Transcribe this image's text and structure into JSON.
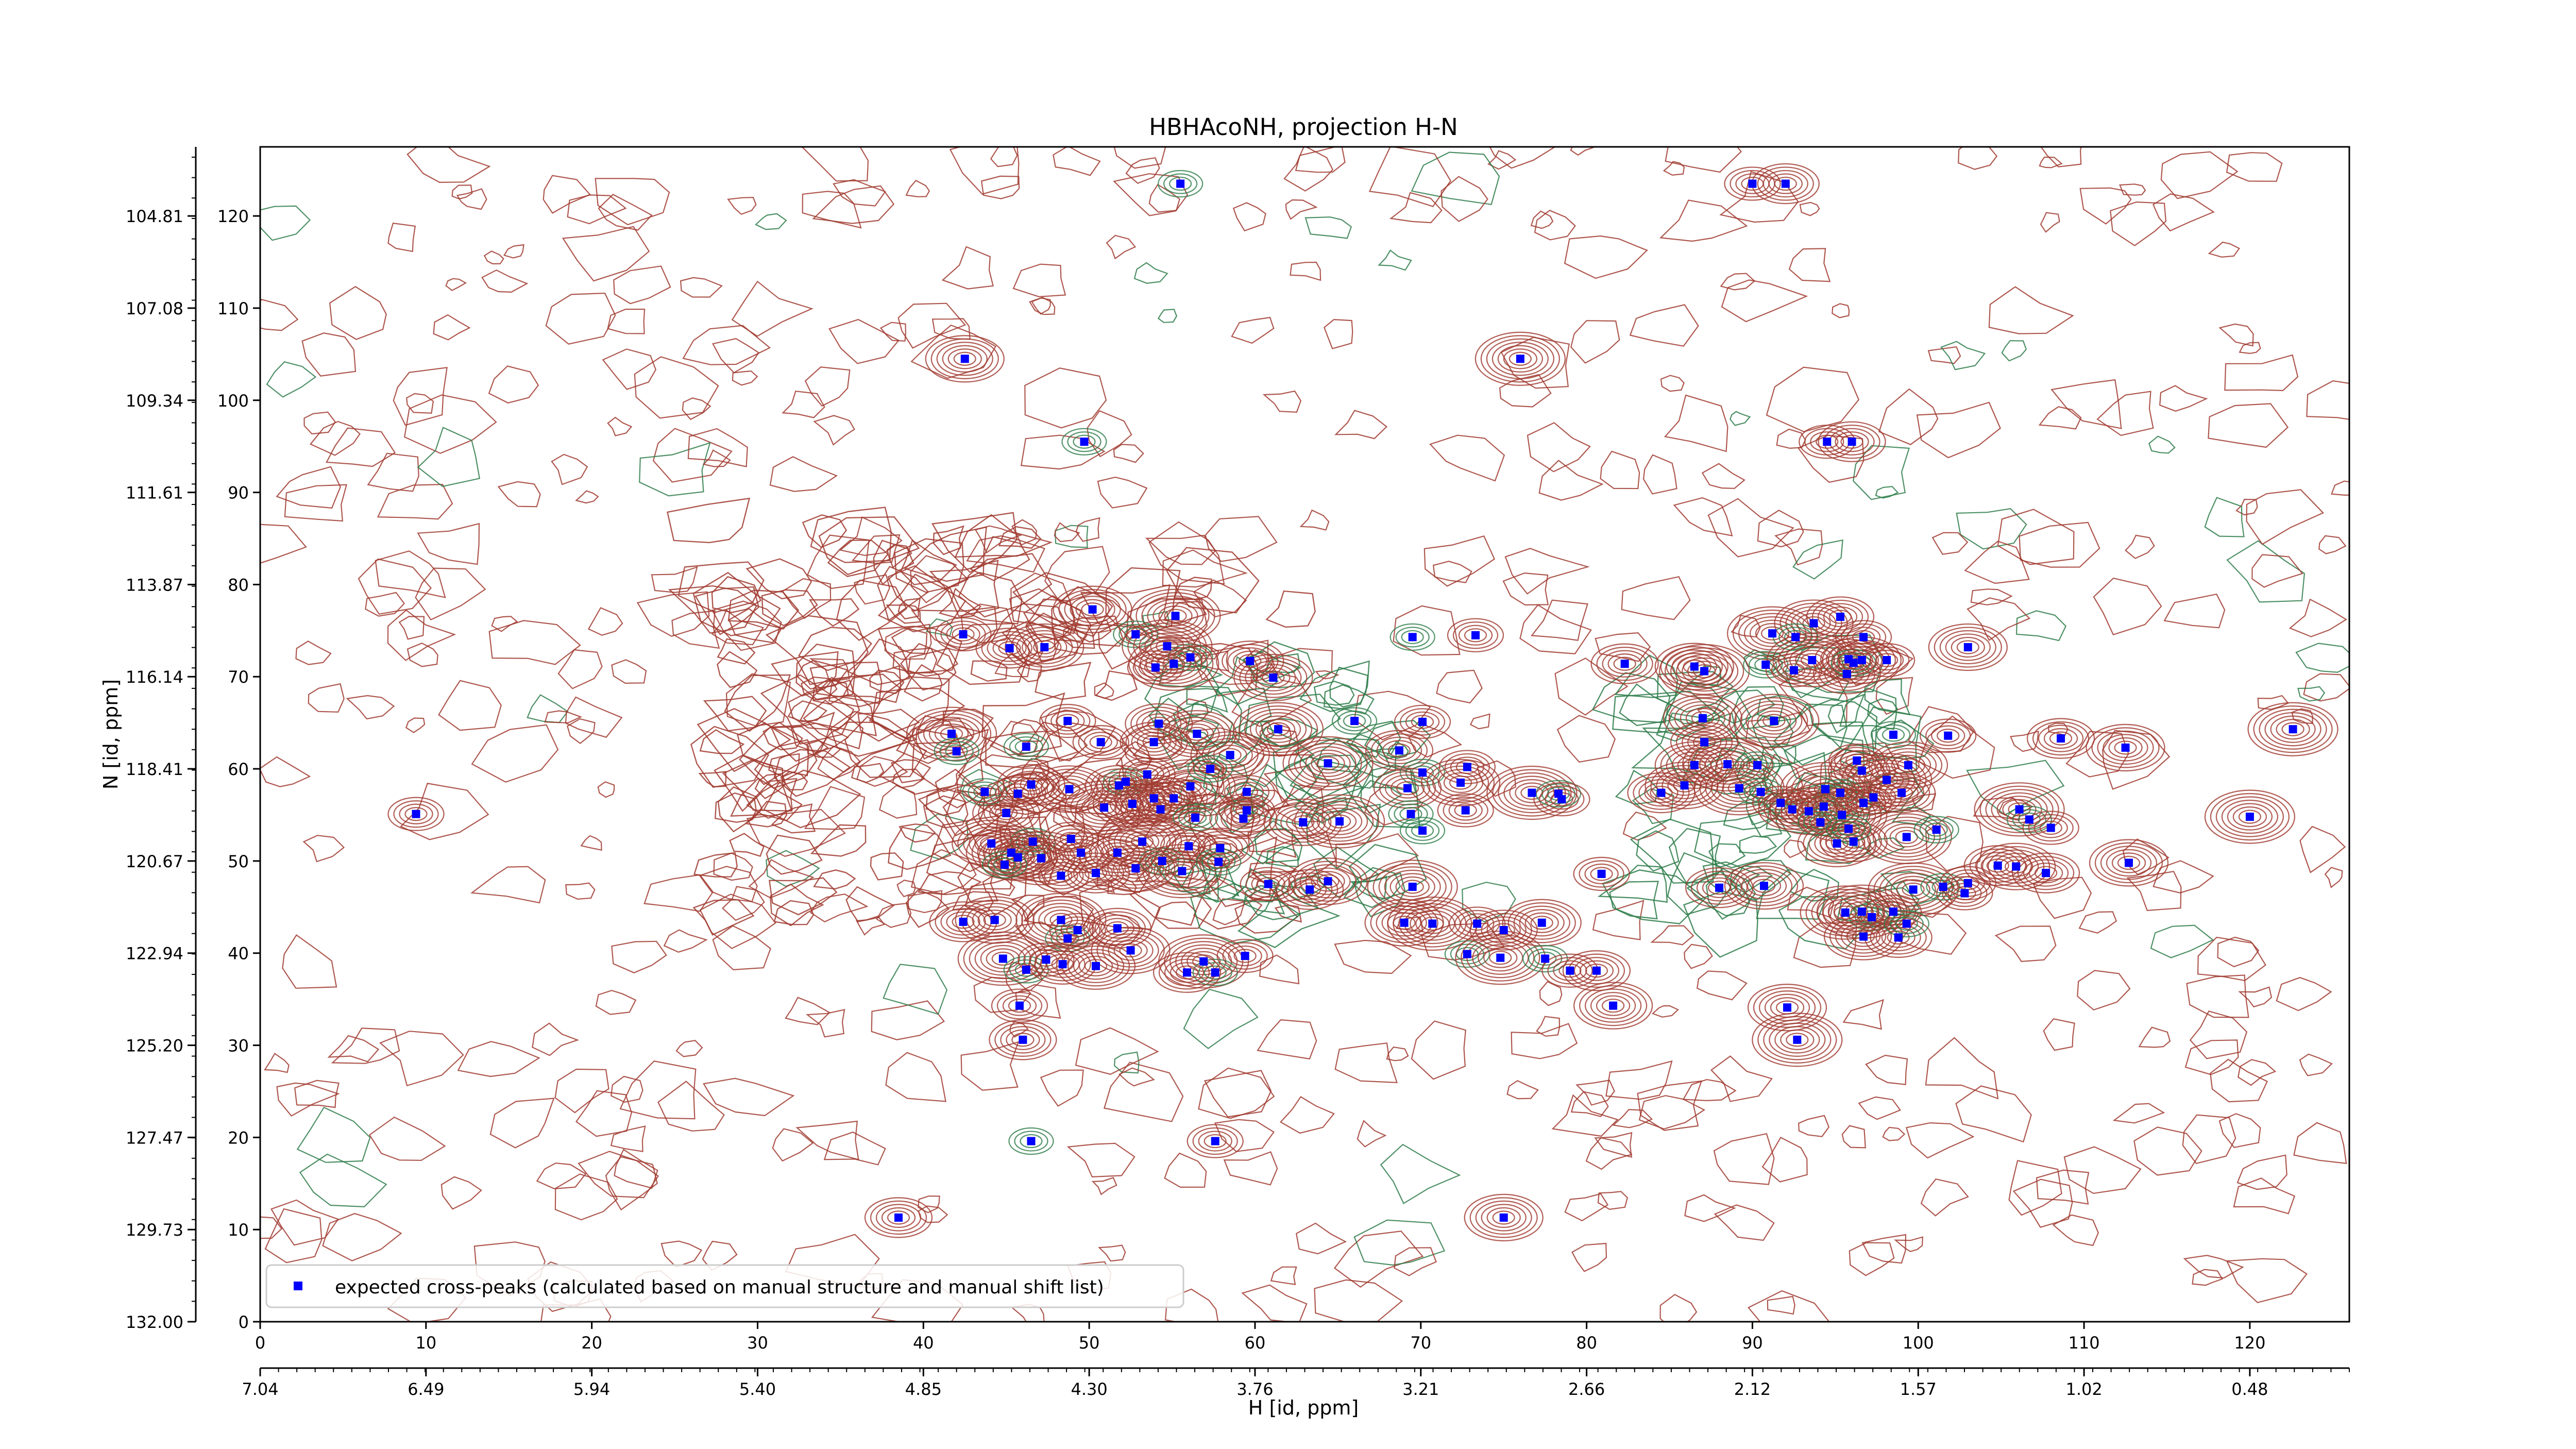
{
  "chart_data": {
    "type": "scatter",
    "title": "HBHAcoNH, projection H-N",
    "xlabel": "H [id, ppm]",
    "ylabel": "N [id, ppm]",
    "xlim": [
      0,
      126
    ],
    "ylim": [
      0,
      127.5
    ],
    "x_ticks": [
      0,
      10,
      20,
      30,
      40,
      50,
      60,
      70,
      80,
      90,
      100,
      110,
      120
    ],
    "x_ticks_secondary": [
      "7.04",
      "6.49",
      "5.94",
      "5.40",
      "4.85",
      "4.30",
      "3.76",
      "3.21",
      "2.66",
      "2.12",
      "1.57",
      "1.02",
      "0.48"
    ],
    "y_ticks_right": [
      0,
      10,
      20,
      30,
      40,
      50,
      60,
      70,
      80,
      90,
      100,
      110,
      120
    ],
    "y_ticks_left": [
      "132.00",
      "129.73",
      "127.47",
      "125.20",
      "122.94",
      "120.67",
      "118.41",
      "116.14",
      "113.87",
      "111.61",
      "109.34",
      "107.08",
      "104.81"
    ],
    "grid": false,
    "legend_position": "lower-left",
    "legend": [
      {
        "label": "expected cross-peaks (calculated based on manual structure and manual shift list)",
        "color": "#0000ff",
        "marker": "square"
      }
    ],
    "colors": {
      "positive_contours": "#a0392f",
      "negative_contours": "#2e7d4a",
      "markers": "#0000ff"
    },
    "series": [
      {
        "name": "expected cross-peaks (calculated based on manual structure and manual shift list)",
        "points": [
          [
            55.5,
            123.5
          ],
          [
            90,
            123.5
          ],
          [
            92,
            123.5
          ],
          [
            42.5,
            104.5
          ],
          [
            76,
            104.5
          ],
          [
            49.7,
            95.5
          ],
          [
            94.5,
            95.5
          ],
          [
            96,
            95.5
          ],
          [
            50.2,
            77.3
          ],
          [
            55.2,
            76.6
          ],
          [
            52.8,
            74.6
          ],
          [
            42.4,
            74.6
          ],
          [
            45.2,
            73.1
          ],
          [
            47.3,
            73.2
          ],
          [
            54.7,
            73.3
          ],
          [
            56.1,
            72.1
          ],
          [
            54,
            71
          ],
          [
            59.7,
            71.7
          ],
          [
            61.1,
            69.9
          ],
          [
            55.1,
            71.4
          ],
          [
            69.5,
            74.3
          ],
          [
            73.3,
            74.5
          ],
          [
            95.3,
            76.5
          ],
          [
            93.7,
            75.8
          ],
          [
            91.2,
            74.7
          ],
          [
            92.6,
            74.3
          ],
          [
            96.7,
            74.3
          ],
          [
            82.3,
            71.4
          ],
          [
            86.5,
            71.1
          ],
          [
            87.1,
            70.6
          ],
          [
            90.8,
            71.3
          ],
          [
            92.5,
            70.7
          ],
          [
            95.7,
            70.3
          ],
          [
            96.6,
            71.8
          ],
          [
            93.6,
            71.8
          ],
          [
            96.1,
            71.5
          ],
          [
            98.1,
            71.8
          ],
          [
            95.8,
            71.9
          ],
          [
            103,
            73.2
          ],
          [
            41.7,
            63.8
          ],
          [
            42,
            61.9
          ],
          [
            48.7,
            65.2
          ],
          [
            54.2,
            64.9
          ],
          [
            56.5,
            63.8
          ],
          [
            61.4,
            64.3
          ],
          [
            66,
            65.2
          ],
          [
            70.1,
            65.1
          ],
          [
            68.7,
            62
          ],
          [
            87,
            65.5
          ],
          [
            91.3,
            65.2
          ],
          [
            98.5,
            63.7
          ],
          [
            101.8,
            63.6
          ],
          [
            108.6,
            63.3
          ],
          [
            112.5,
            62.3
          ],
          [
            122.6,
            64.3
          ],
          [
            46.2,
            62.4
          ],
          [
            50.7,
            62.9
          ],
          [
            53.9,
            62.9
          ],
          [
            58.5,
            61.5
          ],
          [
            64.4,
            60.6
          ],
          [
            70.1,
            59.6
          ],
          [
            72.8,
            60.2
          ],
          [
            69.2,
            57.9
          ],
          [
            72.4,
            58.5
          ],
          [
            76.7,
            57.4
          ],
          [
            78.3,
            57.3
          ],
          [
            78.5,
            56.7
          ],
          [
            87.1,
            62.9
          ],
          [
            86.5,
            60.4
          ],
          [
            88.5,
            60.5
          ],
          [
            90.3,
            60.4
          ],
          [
            96.3,
            60.9
          ],
          [
            96.6,
            59.8
          ],
          [
            99.4,
            60.4
          ],
          [
            98.1,
            58.8
          ],
          [
            43.7,
            57.5
          ],
          [
            45.7,
            57.3
          ],
          [
            46.5,
            58.3
          ],
          [
            48.8,
            57.8
          ],
          [
            50.9,
            55.8
          ],
          [
            52.2,
            58.6
          ],
          [
            53.5,
            59.4
          ],
          [
            51.8,
            58.2
          ],
          [
            53.9,
            56.8
          ],
          [
            56.1,
            58.1
          ],
          [
            57.3,
            60
          ],
          [
            59.5,
            57.5
          ],
          [
            55.1,
            56.8
          ],
          [
            52.6,
            56.2
          ],
          [
            54.3,
            55.6
          ],
          [
            56.4,
            54.7
          ],
          [
            59.5,
            55.5
          ],
          [
            59.3,
            54.6
          ],
          [
            62.9,
            54.2
          ],
          [
            65.1,
            54.3
          ],
          [
            69.4,
            55.1
          ],
          [
            72.7,
            55.5
          ],
          [
            84.5,
            57.4
          ],
          [
            85.9,
            58.2
          ],
          [
            89.2,
            57.9
          ],
          [
            90.5,
            57.5
          ],
          [
            91.7,
            56.3
          ],
          [
            92.4,
            55.6
          ],
          [
            93.4,
            55.4
          ],
          [
            94.4,
            57.8
          ],
          [
            95.3,
            57.4
          ],
          [
            97.3,
            56.9
          ],
          [
            99,
            57.4
          ],
          [
            94.3,
            55.9
          ],
          [
            95.4,
            55
          ],
          [
            94.1,
            54.2
          ],
          [
            96.7,
            56.3
          ],
          [
            96.1,
            52.1
          ],
          [
            95.1,
            51.9
          ],
          [
            99.3,
            52.6
          ],
          [
            95.8,
            53.5
          ],
          [
            9.4,
            55.1
          ],
          [
            45,
            55.2
          ],
          [
            44.1,
            51.9
          ],
          [
            45.3,
            50.9
          ],
          [
            46.6,
            52.1
          ],
          [
            48.9,
            52.4
          ],
          [
            49.5,
            50.9
          ],
          [
            51.7,
            50.9
          ],
          [
            53.2,
            52.1
          ],
          [
            54.4,
            50
          ],
          [
            56,
            51.6
          ],
          [
            57.9,
            51.4
          ],
          [
            45.7,
            50.4
          ],
          [
            47.1,
            50.3
          ],
          [
            44.9,
            49.6
          ],
          [
            48.3,
            48.4
          ],
          [
            50.4,
            48.7
          ],
          [
            52.8,
            49.2
          ],
          [
            55.6,
            48.9
          ],
          [
            57.8,
            49.9
          ],
          [
            60.8,
            47.5
          ],
          [
            63.3,
            46.9
          ],
          [
            64.4,
            47.8
          ],
          [
            69.5,
            47.2
          ],
          [
            70.1,
            53.3
          ],
          [
            80.9,
            48.6
          ],
          [
            88,
            47.1
          ],
          [
            90.7,
            47.3
          ],
          [
            99.7,
            46.9
          ],
          [
            101.5,
            47.2
          ],
          [
            103,
            47.6
          ],
          [
            104.8,
            49.5
          ],
          [
            105.9,
            49.4
          ],
          [
            106.1,
            55.6
          ],
          [
            106.7,
            54.5
          ],
          [
            108,
            53.6
          ],
          [
            107.7,
            48.7
          ],
          [
            112.7,
            49.8
          ],
          [
            120,
            54.8
          ],
          [
            101.1,
            53.4
          ],
          [
            102.8,
            46.5
          ],
          [
            42.4,
            43.4
          ],
          [
            44.3,
            43.6
          ],
          [
            48.3,
            43.6
          ],
          [
            48.7,
            41.6
          ],
          [
            49.3,
            42.5
          ],
          [
            51.7,
            42.7
          ],
          [
            52.5,
            40.3
          ],
          [
            44.8,
            39.4
          ],
          [
            46.2,
            38.2
          ],
          [
            47.4,
            39.3
          ],
          [
            48.4,
            38.8
          ],
          [
            50.4,
            38.6
          ],
          [
            56.9,
            39.1
          ],
          [
            57.6,
            37.9
          ],
          [
            59.4,
            39.7
          ],
          [
            55.9,
            37.9
          ],
          [
            69,
            43.3
          ],
          [
            70.7,
            43.2
          ],
          [
            72.8,
            39.9
          ],
          [
            73.4,
            43.2
          ],
          [
            75,
            42.5
          ],
          [
            77.3,
            43.3
          ],
          [
            74.8,
            39.5
          ],
          [
            77.5,
            39.4
          ],
          [
            79,
            38.1
          ],
          [
            80.6,
            38.1
          ],
          [
            81.6,
            34.3
          ],
          [
            96.6,
            44.5
          ],
          [
            97.2,
            43.9
          ],
          [
            98.5,
            44.5
          ],
          [
            98.8,
            41.7
          ],
          [
            96.7,
            41.8
          ],
          [
            95.6,
            44.4
          ],
          [
            99.3,
            43.2
          ],
          [
            45.8,
            34.3
          ],
          [
            46,
            30.6
          ],
          [
            92.1,
            34.1
          ],
          [
            92.7,
            30.6
          ],
          [
            46.5,
            19.6
          ],
          [
            57.6,
            19.6
          ],
          [
            38.5,
            11.3
          ],
          [
            75,
            11.3
          ]
        ]
      }
    ]
  }
}
